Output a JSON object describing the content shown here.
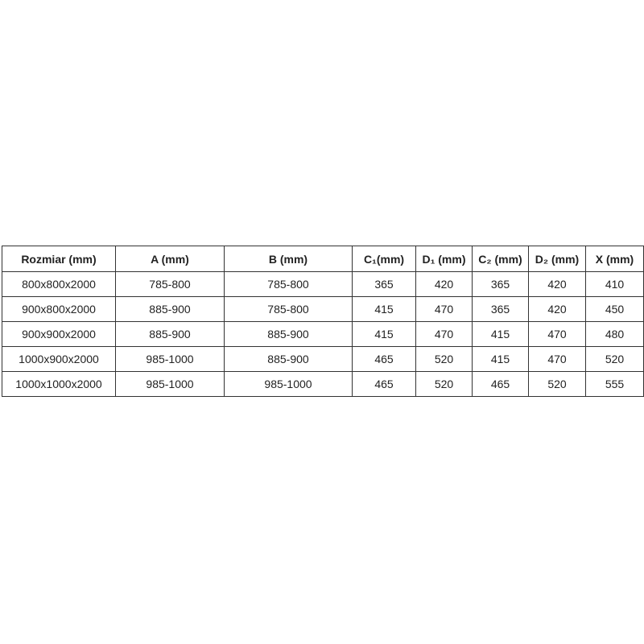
{
  "table": {
    "headers": [
      "Rozmiar (mm)",
      "A (mm)",
      "B (mm)",
      "C₁(mm)",
      "D₁ (mm)",
      "C₂ (mm)",
      "D₂ (mm)",
      "X (mm)"
    ],
    "rows": [
      [
        "800x800x2000",
        "785-800",
        "785-800",
        "365",
        "420",
        "365",
        "420",
        "410"
      ],
      [
        "900x800x2000",
        "885-900",
        "785-800",
        "415",
        "470",
        "365",
        "420",
        "450"
      ],
      [
        "900x900x2000",
        "885-900",
        "885-900",
        "415",
        "470",
        "415",
        "470",
        "480"
      ],
      [
        "1000x900x2000",
        "985-1000",
        "885-900",
        "465",
        "520",
        "415",
        "470",
        "520"
      ],
      [
        "1000x1000x2000",
        "985-1000",
        "985-1000",
        "465",
        "520",
        "465",
        "520",
        "555"
      ]
    ]
  }
}
